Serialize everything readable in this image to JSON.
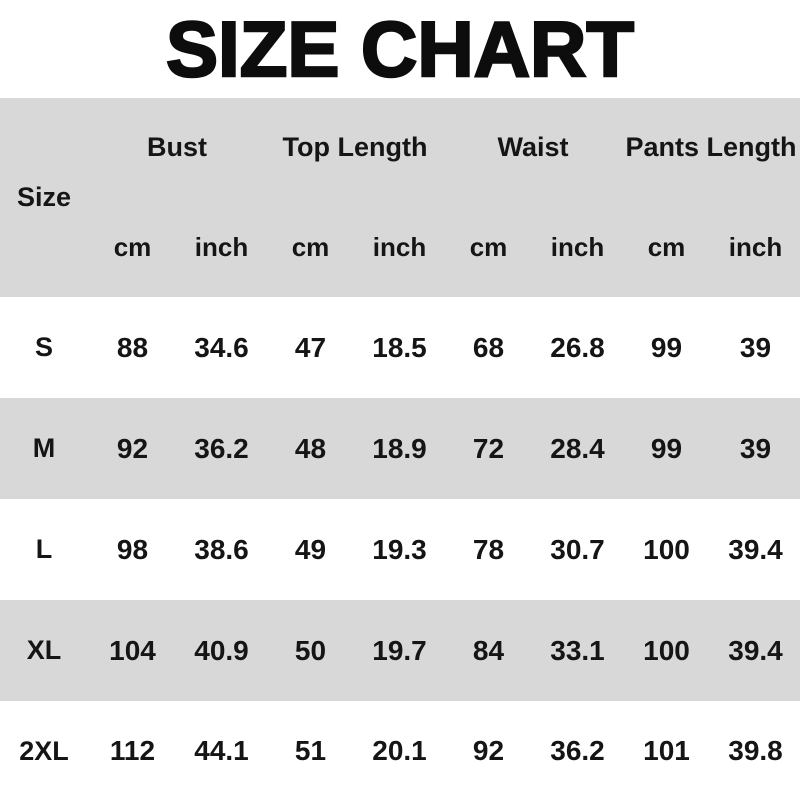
{
  "title": "SIZE CHART",
  "colors": {
    "background": "#ffffff",
    "stripe": "#d8d8d8",
    "text": "#151515",
    "title_text": "#0d0d0d"
  },
  "chart_data": {
    "type": "table",
    "title": "SIZE CHART",
    "corner_label": "Size",
    "column_groups": [
      "Bust",
      "Top Length",
      "Waist",
      "Pants Length"
    ],
    "unit_row": [
      "cm",
      "inch",
      "cm",
      "inch",
      "cm",
      "inch",
      "cm",
      "inch"
    ],
    "columns": [
      "Size",
      "Bust cm",
      "Bust inch",
      "Top Length cm",
      "Top Length inch",
      "Waist cm",
      "Waist inch",
      "Pants Length cm",
      "Pants Length inch"
    ],
    "rows": [
      [
        "S",
        "88",
        "34.6",
        "47",
        "18.5",
        "68",
        "26.8",
        "99",
        "39"
      ],
      [
        "M",
        "92",
        "36.2",
        "48",
        "18.9",
        "72",
        "28.4",
        "99",
        "39"
      ],
      [
        "L",
        "98",
        "38.6",
        "49",
        "19.3",
        "78",
        "30.7",
        "100",
        "39.4"
      ],
      [
        "XL",
        "104",
        "40.9",
        "50",
        "19.7",
        "84",
        "33.1",
        "100",
        "39.4"
      ],
      [
        "2XL",
        "112",
        "44.1",
        "51",
        "20.1",
        "92",
        "36.2",
        "101",
        "39.8"
      ]
    ],
    "layout": {
      "striped": true,
      "stripe_order": "header-gray, then rows alternate white/gray starting white",
      "grid_lines": false,
      "legend": false
    }
  }
}
